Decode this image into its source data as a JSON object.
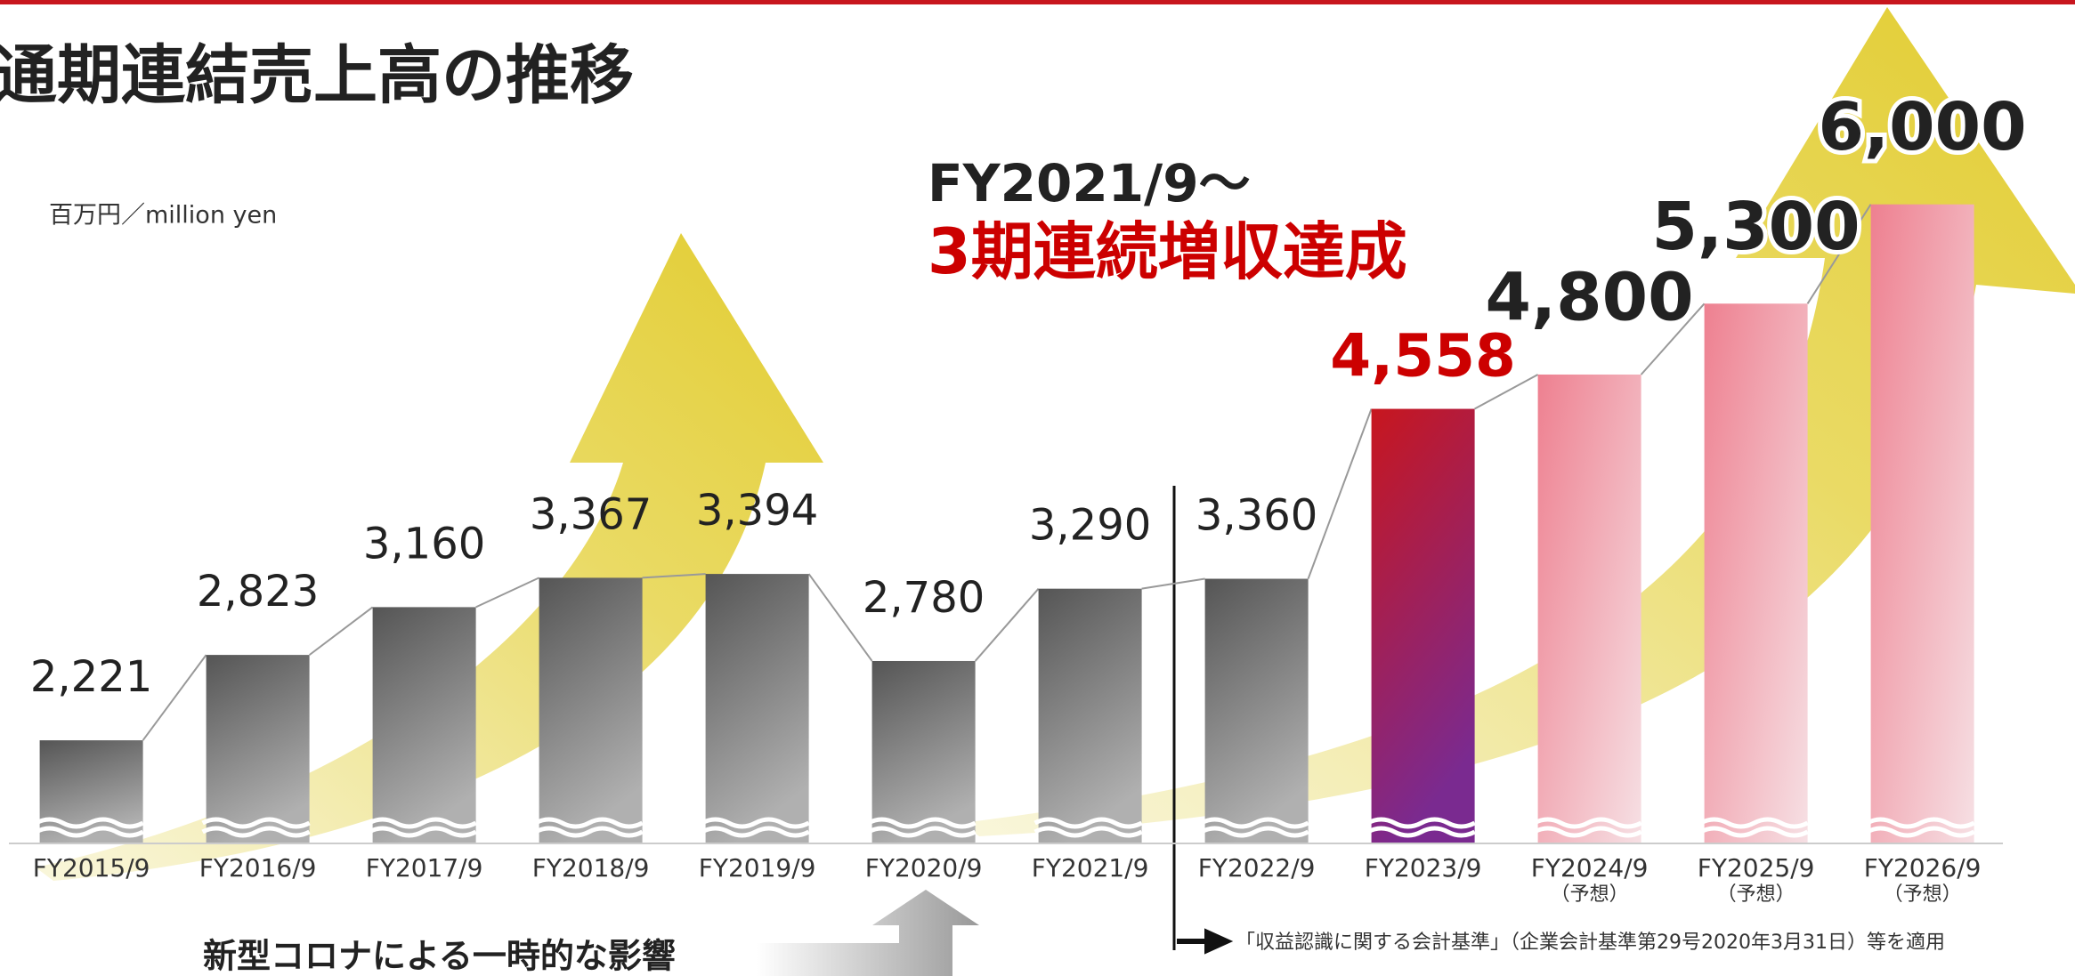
{
  "chart_data": {
    "type": "bar",
    "title": "通期連結売上高の推移",
    "unit_label": "百万円／million yen",
    "annotations": [
      "FY2021/9〜",
      "3期連続増収達成",
      "新型コロナによる一時的な影響",
      "「収益認識に関する会計基準」（企業会計基準第29号2020年3月31日）等を適用"
    ],
    "categories": [
      "FY2015/9",
      "FY2016/9",
      "FY2017/9",
      "FY2018/9",
      "FY2019/9",
      "FY2020/9",
      "FY2021/9",
      "FY2022/9",
      "FY2023/9",
      "FY2024/9",
      "FY2025/9",
      "FY2026/9"
    ],
    "category_notes": [
      null,
      null,
      null,
      null,
      null,
      null,
      null,
      null,
      null,
      "（予想）",
      "（予想）",
      "（予想）"
    ],
    "values": [
      2221,
      2823,
      3160,
      3367,
      3394,
      2780,
      3290,
      3360,
      4558,
      4800,
      5300,
      6000
    ],
    "value_labels": [
      "2,221",
      "2,823",
      "3,160",
      "3,367",
      "3,394",
      "2,780",
      "3,290",
      "3,360",
      "4,558",
      "4,800",
      "5,300",
      "6,000"
    ],
    "colors": [
      "#6e6e6e",
      "#6e6e6e",
      "#6e6e6e",
      "#6e6e6e",
      "#6e6e6e",
      "#6e6e6e",
      "#6e6e6e",
      "#6e6e6e",
      "#c8161e",
      "#ee8090",
      "#ee8090",
      "#ee8090"
    ],
    "label_colors": [
      "#222222",
      "#222222",
      "#222222",
      "#222222",
      "#222222",
      "#222222",
      "#222222",
      "#222222",
      "#cc0000",
      "#222222",
      "#222222",
      "#222222"
    ],
    "ylim": [
      1500,
      6500
    ]
  }
}
